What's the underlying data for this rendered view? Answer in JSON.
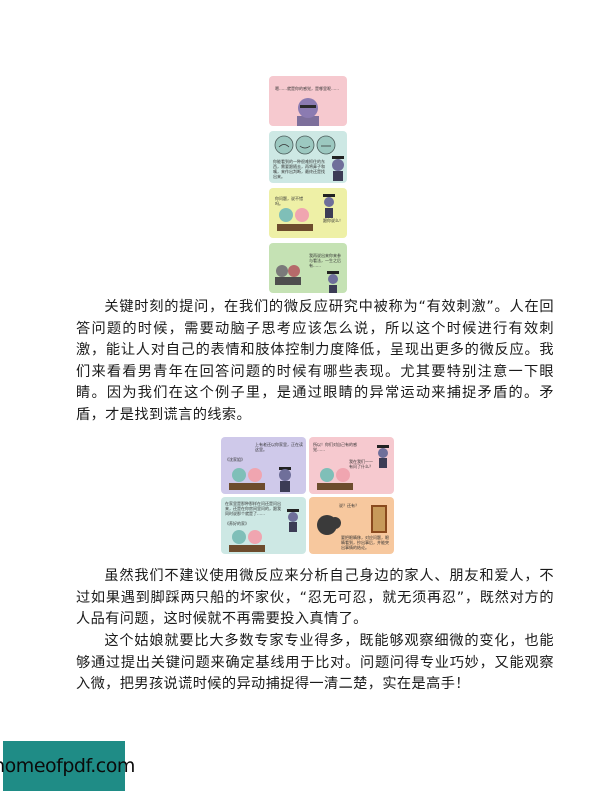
{
  "comic_top": {
    "panel1_caption": "嗯……就是你的感觉，是哪里呢……",
    "panel2_caption": "你能看到的一种很难抓住的东西，需要跟随去，再将鼻子和嘴，来作出判断，最终还是找出来。",
    "panel3_speech_left": "你问题，说不错吗。",
    "panel3_speech_right": "跟你说么！",
    "panel4_caption": "我再说出来你来参与看法，一生之后有……"
  },
  "paragraph1": "关键时刻的提问，在我们的微反应研究中被称为“有效刺激”。人在回答问题的时候，需要动脑子思考应该怎么说，所以这个时候进行有效刺激，能让人对自己的表情和肢体控制力度降低，呈现出更多的微反应。我们来看看男青年在回答问题的时候有哪些表现。尤其要特别注意一下眼睛。因为我们在这个例子里，是通过眼睛的异常运动来捕捉矛盾的。矛盾，才是找到谎言的线索。",
  "comic_mid": {
    "panel1_caption": "上有老还以你家里，正在读这里。",
    "panel1_speech": "《沈家姐》",
    "panel2_caption": "所以！你们对自己有的感觉……",
    "panel2_speech": "我在我们——有问了什么？",
    "panel3_caption": "在家里是那种那样在问还是问出来，还是在你房间里问的，跟我同时说那个就是了……",
    "panel3_speech": "《养好的家》",
    "panel4_caption": "要把眼睛移，对应问题，眼睛看到，抄出事后，并能突出事情的结论。",
    "panel4_speech": "说？还有？"
  },
  "paragraph2": "虽然我们不建议使用微反应来分析自己身边的家人、朋友和爱人，不过如果遇到脚踩两只船的坏家伙，“忍无可忍，就无须再忍”，既然对方的人品有问题，这时候就不再需要投入真情了。",
  "paragraph3": "这个姑娘就要比大多数专家专业得多，既能够观察细微的变化，也能够通过提出关键问题来确定基线用于比对。问题问得专业巧妙，又能观察入微，把男孩说谎时候的异动捕捉得一清二楚，实在是高手！",
  "watermark": "homeofpdf.com",
  "colors": {
    "pink": "#f6c9cf",
    "teal": "#cde8e4",
    "yellow": "#eef0a6",
    "green": "#c5e2b4",
    "lavender": "#cfc9ea",
    "peach": "#f7c89e",
    "badge": "#1f8c86"
  }
}
